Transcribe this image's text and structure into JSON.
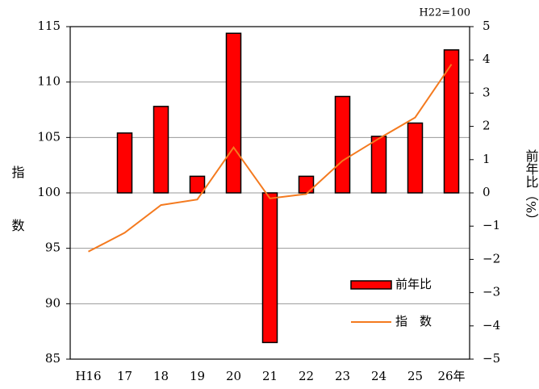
{
  "chart_data": {
    "type": "combo",
    "annotation": "H22=100",
    "y_label": "指数",
    "y2_label": "前年比（%）",
    "categories": [
      "H16",
      "17",
      "18",
      "19",
      "20",
      "21",
      "22",
      "23",
      "24",
      "25",
      "26年"
    ],
    "series": [
      {
        "name": "前年比",
        "type": "bar",
        "axis": "y2",
        "color": "#ff0000",
        "values": [
          null,
          1.8,
          2.6,
          0.5,
          4.8,
          -4.5,
          0.5,
          2.9,
          1.7,
          2.1,
          4.3
        ]
      },
      {
        "name": "指　数",
        "type": "line",
        "axis": "y",
        "color": "#f47a1f",
        "values": [
          94.7,
          96.4,
          98.9,
          99.4,
          104.1,
          99.5,
          99.9,
          102.9,
          104.9,
          106.8,
          111.6
        ]
      }
    ],
    "ylim": [
      85,
      115
    ],
    "yticks": [
      85,
      90,
      95,
      100,
      105,
      110,
      115
    ],
    "y2lim": [
      -5,
      5
    ],
    "y2ticks": [
      {
        "value": -5,
        "label": "−5"
      },
      {
        "value": -4,
        "label": "−4"
      },
      {
        "value": -3,
        "label": "−3"
      },
      {
        "value": -2,
        "label": "−2"
      },
      {
        "value": -1,
        "label": "−1"
      },
      0,
      1,
      2,
      3,
      4,
      5
    ],
    "grid": true
  }
}
